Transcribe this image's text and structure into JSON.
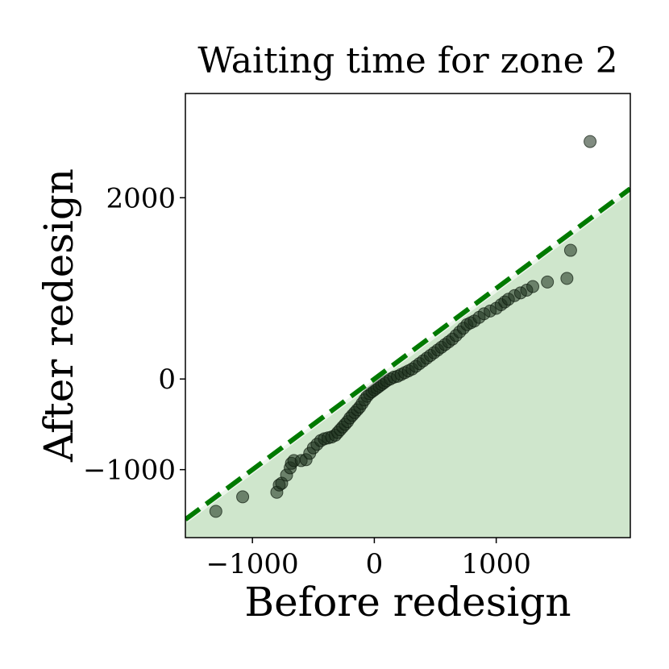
{
  "chart_data": {
    "type": "scatter",
    "title": "Waiting time for zone 2",
    "xlabel": "Before redesign",
    "ylabel": "After redesign",
    "xlim": [
      -1550,
      2100
    ],
    "ylim": [
      -1750,
      3150
    ],
    "xticks": [
      -1000,
      0,
      1000
    ],
    "yticks": [
      -1000,
      0,
      2000
    ],
    "xtick_labels": [
      "−1000",
      "0",
      "1000"
    ],
    "ytick_labels": [
      "−1000",
      "0",
      "2000"
    ],
    "grid": false,
    "reference_line": {
      "slope": 1,
      "intercept": 0,
      "style": "dashed",
      "color": "#007a00"
    },
    "fill_below_line_color": "#cfe6cc",
    "point_color": "#1a2e1a",
    "points": [
      [
        -1300,
        -1460
      ],
      [
        -1080,
        -1300
      ],
      [
        -800,
        -1250
      ],
      [
        -780,
        -1170
      ],
      [
        -760,
        -1150
      ],
      [
        -720,
        -1060
      ],
      [
        -690,
        -980
      ],
      [
        -680,
        -930
      ],
      [
        -660,
        -900
      ],
      [
        -600,
        -900
      ],
      [
        -560,
        -890
      ],
      [
        -530,
        -820
      ],
      [
        -500,
        -760
      ],
      [
        -470,
        -720
      ],
      [
        -440,
        -680
      ],
      [
        -410,
        -660
      ],
      [
        -380,
        -650
      ],
      [
        -350,
        -640
      ],
      [
        -320,
        -620
      ],
      [
        -300,
        -590
      ],
      [
        -280,
        -560
      ],
      [
        -260,
        -530
      ],
      [
        -240,
        -500
      ],
      [
        -220,
        -470
      ],
      [
        -200,
        -430
      ],
      [
        -180,
        -400
      ],
      [
        -160,
        -370
      ],
      [
        -140,
        -340
      ],
      [
        -120,
        -310
      ],
      [
        -100,
        -270
      ],
      [
        -80,
        -230
      ],
      [
        -60,
        -190
      ],
      [
        -40,
        -160
      ],
      [
        -20,
        -140
      ],
      [
        0,
        -120
      ],
      [
        20,
        -100
      ],
      [
        40,
        -80
      ],
      [
        60,
        -60
      ],
      [
        80,
        -40
      ],
      [
        100,
        -20
      ],
      [
        130,
        0
      ],
      [
        160,
        20
      ],
      [
        190,
        30
      ],
      [
        220,
        50
      ],
      [
        250,
        70
      ],
      [
        280,
        90
      ],
      [
        310,
        110
      ],
      [
        340,
        140
      ],
      [
        370,
        170
      ],
      [
        400,
        200
      ],
      [
        430,
        230
      ],
      [
        460,
        260
      ],
      [
        490,
        290
      ],
      [
        520,
        320
      ],
      [
        550,
        350
      ],
      [
        580,
        380
      ],
      [
        610,
        410
      ],
      [
        640,
        440
      ],
      [
        670,
        480
      ],
      [
        700,
        520
      ],
      [
        730,
        560
      ],
      [
        760,
        600
      ],
      [
        790,
        620
      ],
      [
        820,
        640
      ],
      [
        860,
        680
      ],
      [
        900,
        720
      ],
      [
        950,
        750
      ],
      [
        1000,
        780
      ],
      [
        1040,
        820
      ],
      [
        1070,
        850
      ],
      [
        1100,
        880
      ],
      [
        1150,
        920
      ],
      [
        1200,
        950
      ],
      [
        1250,
        980
      ],
      [
        1300,
        1020
      ],
      [
        1420,
        1070
      ],
      [
        1580,
        1110
      ],
      [
        1610,
        1420
      ],
      [
        1770,
        2620
      ]
    ]
  }
}
